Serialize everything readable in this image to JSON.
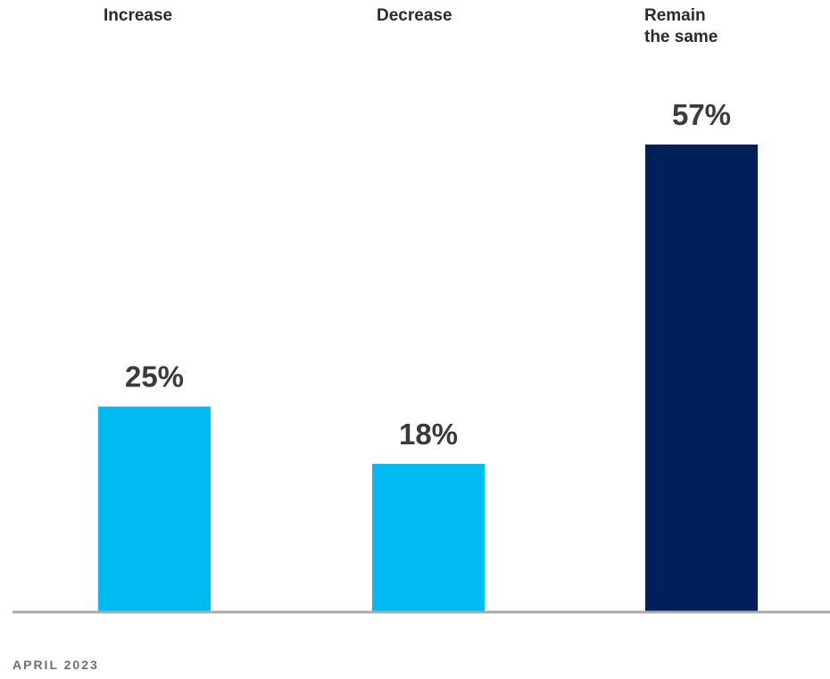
{
  "chart_data": {
    "type": "bar",
    "categories": [
      "Increase",
      "Decrease",
      "Remain the same"
    ],
    "category_label_lines": [
      [
        "Increase"
      ],
      [
        "Decrease"
      ],
      [
        "Remain",
        "the same"
      ]
    ],
    "values": [
      25,
      18,
      57
    ],
    "value_labels": [
      "25%",
      "18%",
      "57%"
    ],
    "colors": [
      "#00bbf2",
      "#00bbf2",
      "#00205b"
    ],
    "axis_color": "#a9a9a9",
    "ylim": [
      0,
      57
    ],
    "grid": false,
    "legend": "none"
  },
  "footer": {
    "date": "APRIL 2023"
  }
}
